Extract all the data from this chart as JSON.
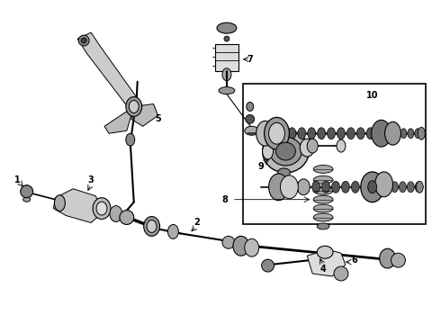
{
  "background_color": "#ffffff",
  "fig_width": 4.9,
  "fig_height": 3.6,
  "dpi": 100
}
